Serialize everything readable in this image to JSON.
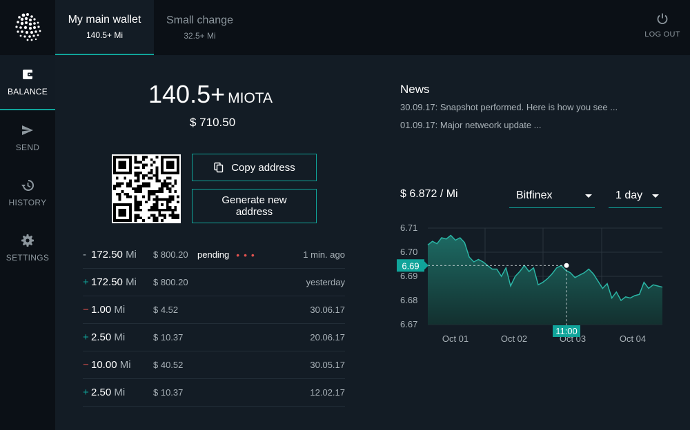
{
  "wallets": [
    {
      "name": "My main wallet",
      "amount": "140.5+ Mi"
    },
    {
      "name": "Small change",
      "amount": "32.5+ Mi"
    }
  ],
  "logout_label": "LOG OUT",
  "nav": [
    {
      "label": "BALANCE",
      "icon": "wallet-icon"
    },
    {
      "label": "SEND",
      "icon": "send-icon"
    },
    {
      "label": "HISTORY",
      "icon": "history-icon"
    },
    {
      "label": "SETTINGS",
      "icon": "gear-icon"
    }
  ],
  "balance": {
    "amount": "140.5+",
    "unit": "MIOTA",
    "usd": "$ 710.50"
  },
  "buttons": {
    "copy": "Copy address",
    "generate": "Generate new address"
  },
  "transactions": [
    {
      "sign": "-",
      "type": "neutral",
      "value": "172.50",
      "unit": "Mi",
      "usd": "$ 800.20",
      "status": "pending",
      "date": "1 min. ago"
    },
    {
      "sign": "+",
      "type": "plus",
      "value": "172.50",
      "unit": "Mi",
      "usd": "$ 800.20",
      "status": "",
      "date": "yesterday"
    },
    {
      "sign": "−",
      "type": "minus",
      "value": "1.00",
      "unit": "Mi",
      "usd": "$ 4.52",
      "status": "",
      "date": "30.06.17"
    },
    {
      "sign": "+",
      "type": "plus",
      "value": "2.50",
      "unit": "Mi",
      "usd": "$ 10.37",
      "status": "",
      "date": "20.06.17"
    },
    {
      "sign": "−",
      "type": "minus",
      "value": "10.00",
      "unit": "Mi",
      "usd": "$ 40.52",
      "status": "",
      "date": "30.05.17"
    },
    {
      "sign": "+",
      "type": "plus",
      "value": "2.50",
      "unit": "Mi",
      "usd": "$ 10.37",
      "status": "",
      "date": "12.02.17"
    }
  ],
  "news": {
    "title": "News",
    "items": [
      "30.09.17: Snapshot performed. Here is how you see ...",
      "01.09.17: Major netweork update ..."
    ]
  },
  "market": {
    "price": "$ 6.872 / Mi",
    "exchange": "Bitfinex",
    "timeframe": "1 day"
  },
  "chart_data": {
    "type": "area",
    "y_ticks": [
      "6.71",
      "6.70",
      "6.69",
      "6.68",
      "6.67"
    ],
    "ylim": [
      6.67,
      6.71
    ],
    "x_ticks": [
      "Oct 01",
      "Oct 02",
      "Oct 03",
      "Oct 04"
    ],
    "highlight": {
      "value_label": "6.69",
      "time_label": "11:00",
      "value": 6.6945
    },
    "values": [
      6.703,
      6.7045,
      6.7035,
      6.706,
      6.7055,
      6.707,
      6.705,
      6.706,
      6.704,
      6.698,
      6.696,
      6.697,
      6.696,
      6.6945,
      6.693,
      6.693,
      6.69,
      6.6935,
      6.686,
      6.69,
      6.692,
      6.6945,
      6.692,
      6.6935,
      6.6865,
      6.6875,
      6.689,
      6.691,
      6.6935,
      6.6945,
      6.6925,
      6.6915,
      6.6895,
      6.6905,
      6.6915,
      6.693,
      6.691,
      6.688,
      6.685,
      6.687,
      6.681,
      6.6835,
      6.68,
      6.6815,
      6.681,
      6.682,
      6.6825,
      6.6875,
      6.685,
      6.6865,
      6.686,
      6.6855
    ],
    "colors": {
      "line": "#2bb5a5",
      "fill_top": "#1d6a63",
      "fill_bottom": "#13302f",
      "accent": "#10a49a",
      "grid": "#2a343d"
    }
  },
  "colors": {
    "accent": "#10a49a",
    "negative": "#e0524f",
    "bg": "#131c25",
    "sidebar": "#0b1016"
  }
}
